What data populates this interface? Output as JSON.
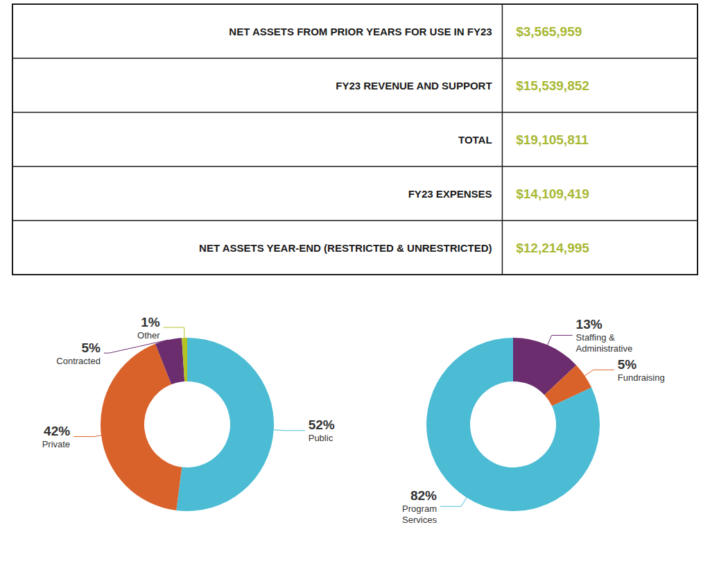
{
  "chart_data": [
    {
      "type": "table",
      "categories": [
        "NET ASSETS FROM PRIOR YEARS FOR USE IN FY23",
        "FY23 REVENUE AND SUPPORT",
        "TOTAL",
        "FY23 EXPENSES",
        "NET ASSETS YEAR-END (RESTRICTED & UNRESTRICTED)"
      ],
      "values": [
        3565959,
        15539852,
        19105811,
        14109419,
        12214995
      ],
      "value_labels": [
        "$3,565,959",
        "$15,539,852",
        "$19,105,811",
        "$14,109,419",
        "$12,214,995"
      ],
      "color": "#a8b832"
    },
    {
      "type": "pie",
      "categories": [
        "Public",
        "Private",
        "Contracted",
        "Other"
      ],
      "values": [
        52,
        42,
        5,
        1
      ],
      "value_labels": [
        "52%",
        "42%",
        "5%",
        "1%"
      ],
      "colors": [
        "#4bbcd4",
        "#d9622b",
        "#6b2d6e",
        "#b5c225"
      ],
      "data_labels": true
    },
    {
      "type": "pie",
      "categories": [
        "Staffing &\nAdministrative",
        "Fundraising",
        "Program\nServices"
      ],
      "values": [
        13,
        5,
        82
      ],
      "value_labels": [
        "13%",
        "5%",
        "82%"
      ],
      "colors": [
        "#6b2d6e",
        "#d9622b",
        "#4bbcd4"
      ],
      "data_labels": true
    }
  ]
}
